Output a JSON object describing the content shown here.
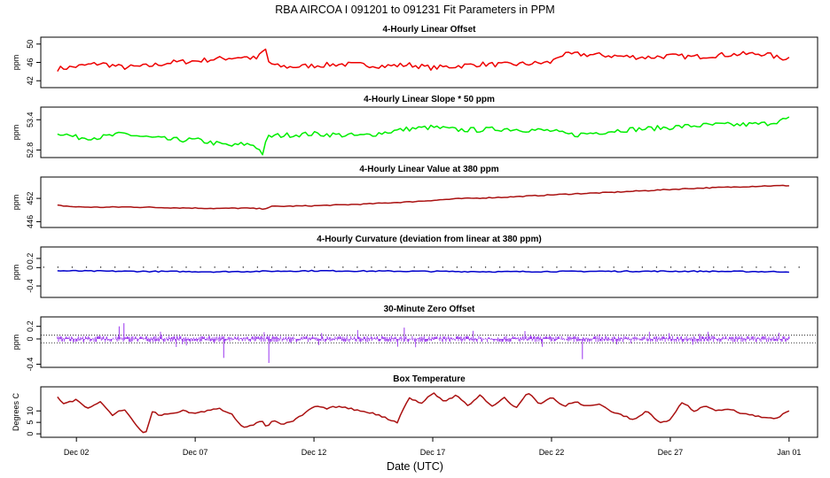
{
  "figure": {
    "title": "RBA   AIRCOA I   091201 to 091231   Fit Parameters in PPM",
    "xlabel": "Date (UTC)",
    "x_ticks": [
      {
        "day": 2,
        "label": "Dec 02"
      },
      {
        "day": 7,
        "label": "Dec 07"
      },
      {
        "day": 12,
        "label": "Dec 12"
      },
      {
        "day": 17,
        "label": "Dec 17"
      },
      {
        "day": 22,
        "label": "Dec 22"
      },
      {
        "day": 27,
        "label": "Dec 27"
      },
      {
        "day": 32,
        "label": "Jan 01"
      }
    ],
    "x_range_days": [
      0.5,
      33.2
    ],
    "data_span_days": [
      1.2,
      32
    ]
  },
  "chart_data": [
    {
      "type": "line",
      "name": "linear-offset",
      "title": "4-Hourly Linear Offset",
      "ylabel": "ppm",
      "ylim": [
        40.5,
        51.5
      ],
      "yticks": [
        42,
        46,
        50
      ],
      "color": "#ee0000",
      "style": "line",
      "series": {
        "x": [
          1.2,
          2,
          3,
          4,
          5,
          6,
          7,
          8,
          9,
          9.6,
          9.95,
          10.1,
          10.4,
          11,
          12,
          13,
          14,
          15,
          16,
          17,
          18,
          19,
          20,
          21,
          22,
          22.3,
          23,
          24,
          25,
          26,
          27,
          28,
          29,
          30,
          31,
          31.6,
          32
        ],
        "y": [
          44.6,
          45.1,
          45.8,
          44.9,
          45.2,
          46,
          46.3,
          46.8,
          47.2,
          46.8,
          49,
          46,
          45.2,
          45,
          45.3,
          45.6,
          45.5,
          45.2,
          45.5,
          44.8,
          45.2,
          45.6,
          45.5,
          45.7,
          46,
          47.5,
          47.8,
          47.6,
          47.3,
          47.1,
          47.4,
          47.2,
          47.6,
          47.8,
          47.9,
          46.9,
          47
        ]
      },
      "noise": 0.55
    },
    {
      "type": "line",
      "name": "linear-slope",
      "title": "4-Hourly Linear Slope * 50 ppm",
      "ylabel": "ppm",
      "ylim": [
        52.65,
        53.65
      ],
      "yticks": [
        52.8,
        53.4
      ],
      "color": "#00ee00",
      "style": "line",
      "series": {
        "x": [
          1.2,
          2,
          3,
          4,
          5,
          6,
          7,
          8,
          8.6,
          9,
          9.5,
          9.9,
          10,
          10.3,
          11,
          12,
          13,
          14,
          15,
          16,
          17,
          18,
          19,
          20,
          21,
          22,
          22.5,
          23,
          24,
          25,
          26,
          27,
          28,
          29,
          30,
          31,
          31.6,
          32
        ],
        "y": [
          53.15,
          53.05,
          53.05,
          53.12,
          53.05,
          53.0,
          53.0,
          52.92,
          52.88,
          52.92,
          52.9,
          52.7,
          53.05,
          53.08,
          53.1,
          53.12,
          53.1,
          53.08,
          53.15,
          53.22,
          53.25,
          53.2,
          53.2,
          53.22,
          53.2,
          53.18,
          53.12,
          53.1,
          53.15,
          53.2,
          53.22,
          53.25,
          53.28,
          53.3,
          53.3,
          53.32,
          53.38,
          53.42
        ]
      },
      "noise": 0.05
    },
    {
      "type": "line",
      "name": "linear-value",
      "title": "4-Hourly Linear Value at 380 ppm",
      "ylabel": "ppm",
      "ylim": [
        444.5,
        457.5
      ],
      "yticks": [
        446,
        452
      ],
      "color": "#aa1111",
      "style": "line",
      "series": {
        "x": [
          1.2,
          2,
          3,
          4,
          5,
          6,
          7,
          8,
          9,
          9.9,
          10.2,
          11,
          12,
          13,
          14,
          15,
          16,
          17,
          18,
          19,
          20,
          21,
          22,
          23,
          24,
          25,
          26,
          27,
          28,
          29,
          30,
          31,
          32
        ],
        "y": [
          450.2,
          449.8,
          449.7,
          449.8,
          449.7,
          449.6,
          449.5,
          449.4,
          449.5,
          449.3,
          449.9,
          450,
          450.1,
          450.3,
          450.5,
          450.8,
          451.1,
          451.5,
          451.9,
          452.1,
          452.3,
          452.6,
          452.9,
          453.2,
          453.4,
          453.7,
          454,
          454.3,
          454.6,
          454.8,
          455,
          455.2,
          455.3
        ]
      },
      "noise": 0.12
    },
    {
      "type": "line",
      "name": "curvature",
      "title": "4-Hourly Curvature (deviation from linear at 380 ppm)",
      "ylabel": "ppm",
      "ylim": [
        -0.65,
        0.45
      ],
      "yticks": [
        -0.4,
        0,
        0.2
      ],
      "color": "#0000cc",
      "style": "line",
      "series": {
        "x": [
          1.2,
          4,
          8,
          12,
          16,
          20,
          24,
          28,
          32
        ],
        "y": [
          -0.07,
          -0.08,
          -0.09,
          -0.07,
          -0.08,
          -0.09,
          -0.08,
          -0.08,
          -0.09
        ]
      },
      "noise": 0.012,
      "dots_y": 0.02,
      "dots_step_days": 0.6,
      "dots_range": [
        0.6,
        33
      ]
    },
    {
      "type": "scatter",
      "name": "zero-offset",
      "title": "30-Minute Zero Offset",
      "ylabel": "ppm",
      "ylim": [
        -0.45,
        0.35
      ],
      "yticks": [
        -0.4,
        0,
        0.2
      ],
      "color": "#9933ee",
      "style": "spikes",
      "series": {
        "x": [
          1.2,
          32
        ],
        "y": [
          0,
          0
        ]
      },
      "noise": 0.05,
      "hlines": [
        0.06,
        -0.06
      ]
    },
    {
      "type": "line",
      "name": "box-temperature",
      "title": "Box Temperature",
      "ylabel": "Degrees C",
      "ylim": [
        -1.5,
        20.5
      ],
      "yticks": [
        0,
        5,
        10
      ],
      "color": "#aa1111",
      "style": "line",
      "series": {
        "x": [
          1.2,
          1.5,
          2,
          2.5,
          3,
          3.5,
          4,
          4.5,
          4.9,
          5.2,
          5.5,
          6,
          6.5,
          7,
          7.5,
          8,
          8.5,
          9,
          9.5,
          9.8,
          10,
          10.3,
          10.6,
          11,
          11.5,
          12,
          12.5,
          13,
          13.5,
          14,
          14.5,
          15,
          15.5,
          16,
          16.5,
          17,
          17.5,
          18,
          18.5,
          19,
          19.5,
          20,
          20.5,
          21,
          21.5,
          22,
          22.5,
          23,
          23.5,
          24,
          24.5,
          25,
          25.5,
          26,
          26.5,
          27,
          27.5,
          28,
          28.5,
          29,
          29.5,
          30,
          30.5,
          31,
          31.5,
          32
        ],
        "y": [
          16,
          13,
          15,
          11,
          14,
          8,
          11,
          4,
          -0.5,
          10,
          8,
          9,
          10,
          9,
          10,
          11,
          9,
          3,
          4,
          6,
          3,
          6,
          4,
          5,
          8,
          12,
          11,
          12,
          11,
          10,
          9,
          7,
          5,
          16,
          13,
          18,
          14,
          17,
          12,
          17,
          12,
          16,
          11,
          18,
          13,
          16,
          12,
          14,
          12,
          13,
          10,
          8,
          6,
          10,
          5,
          6,
          14,
          10,
          12,
          10,
          11,
          9,
          8,
          7,
          7,
          10
        ]
      },
      "noise": 0.35
    }
  ]
}
